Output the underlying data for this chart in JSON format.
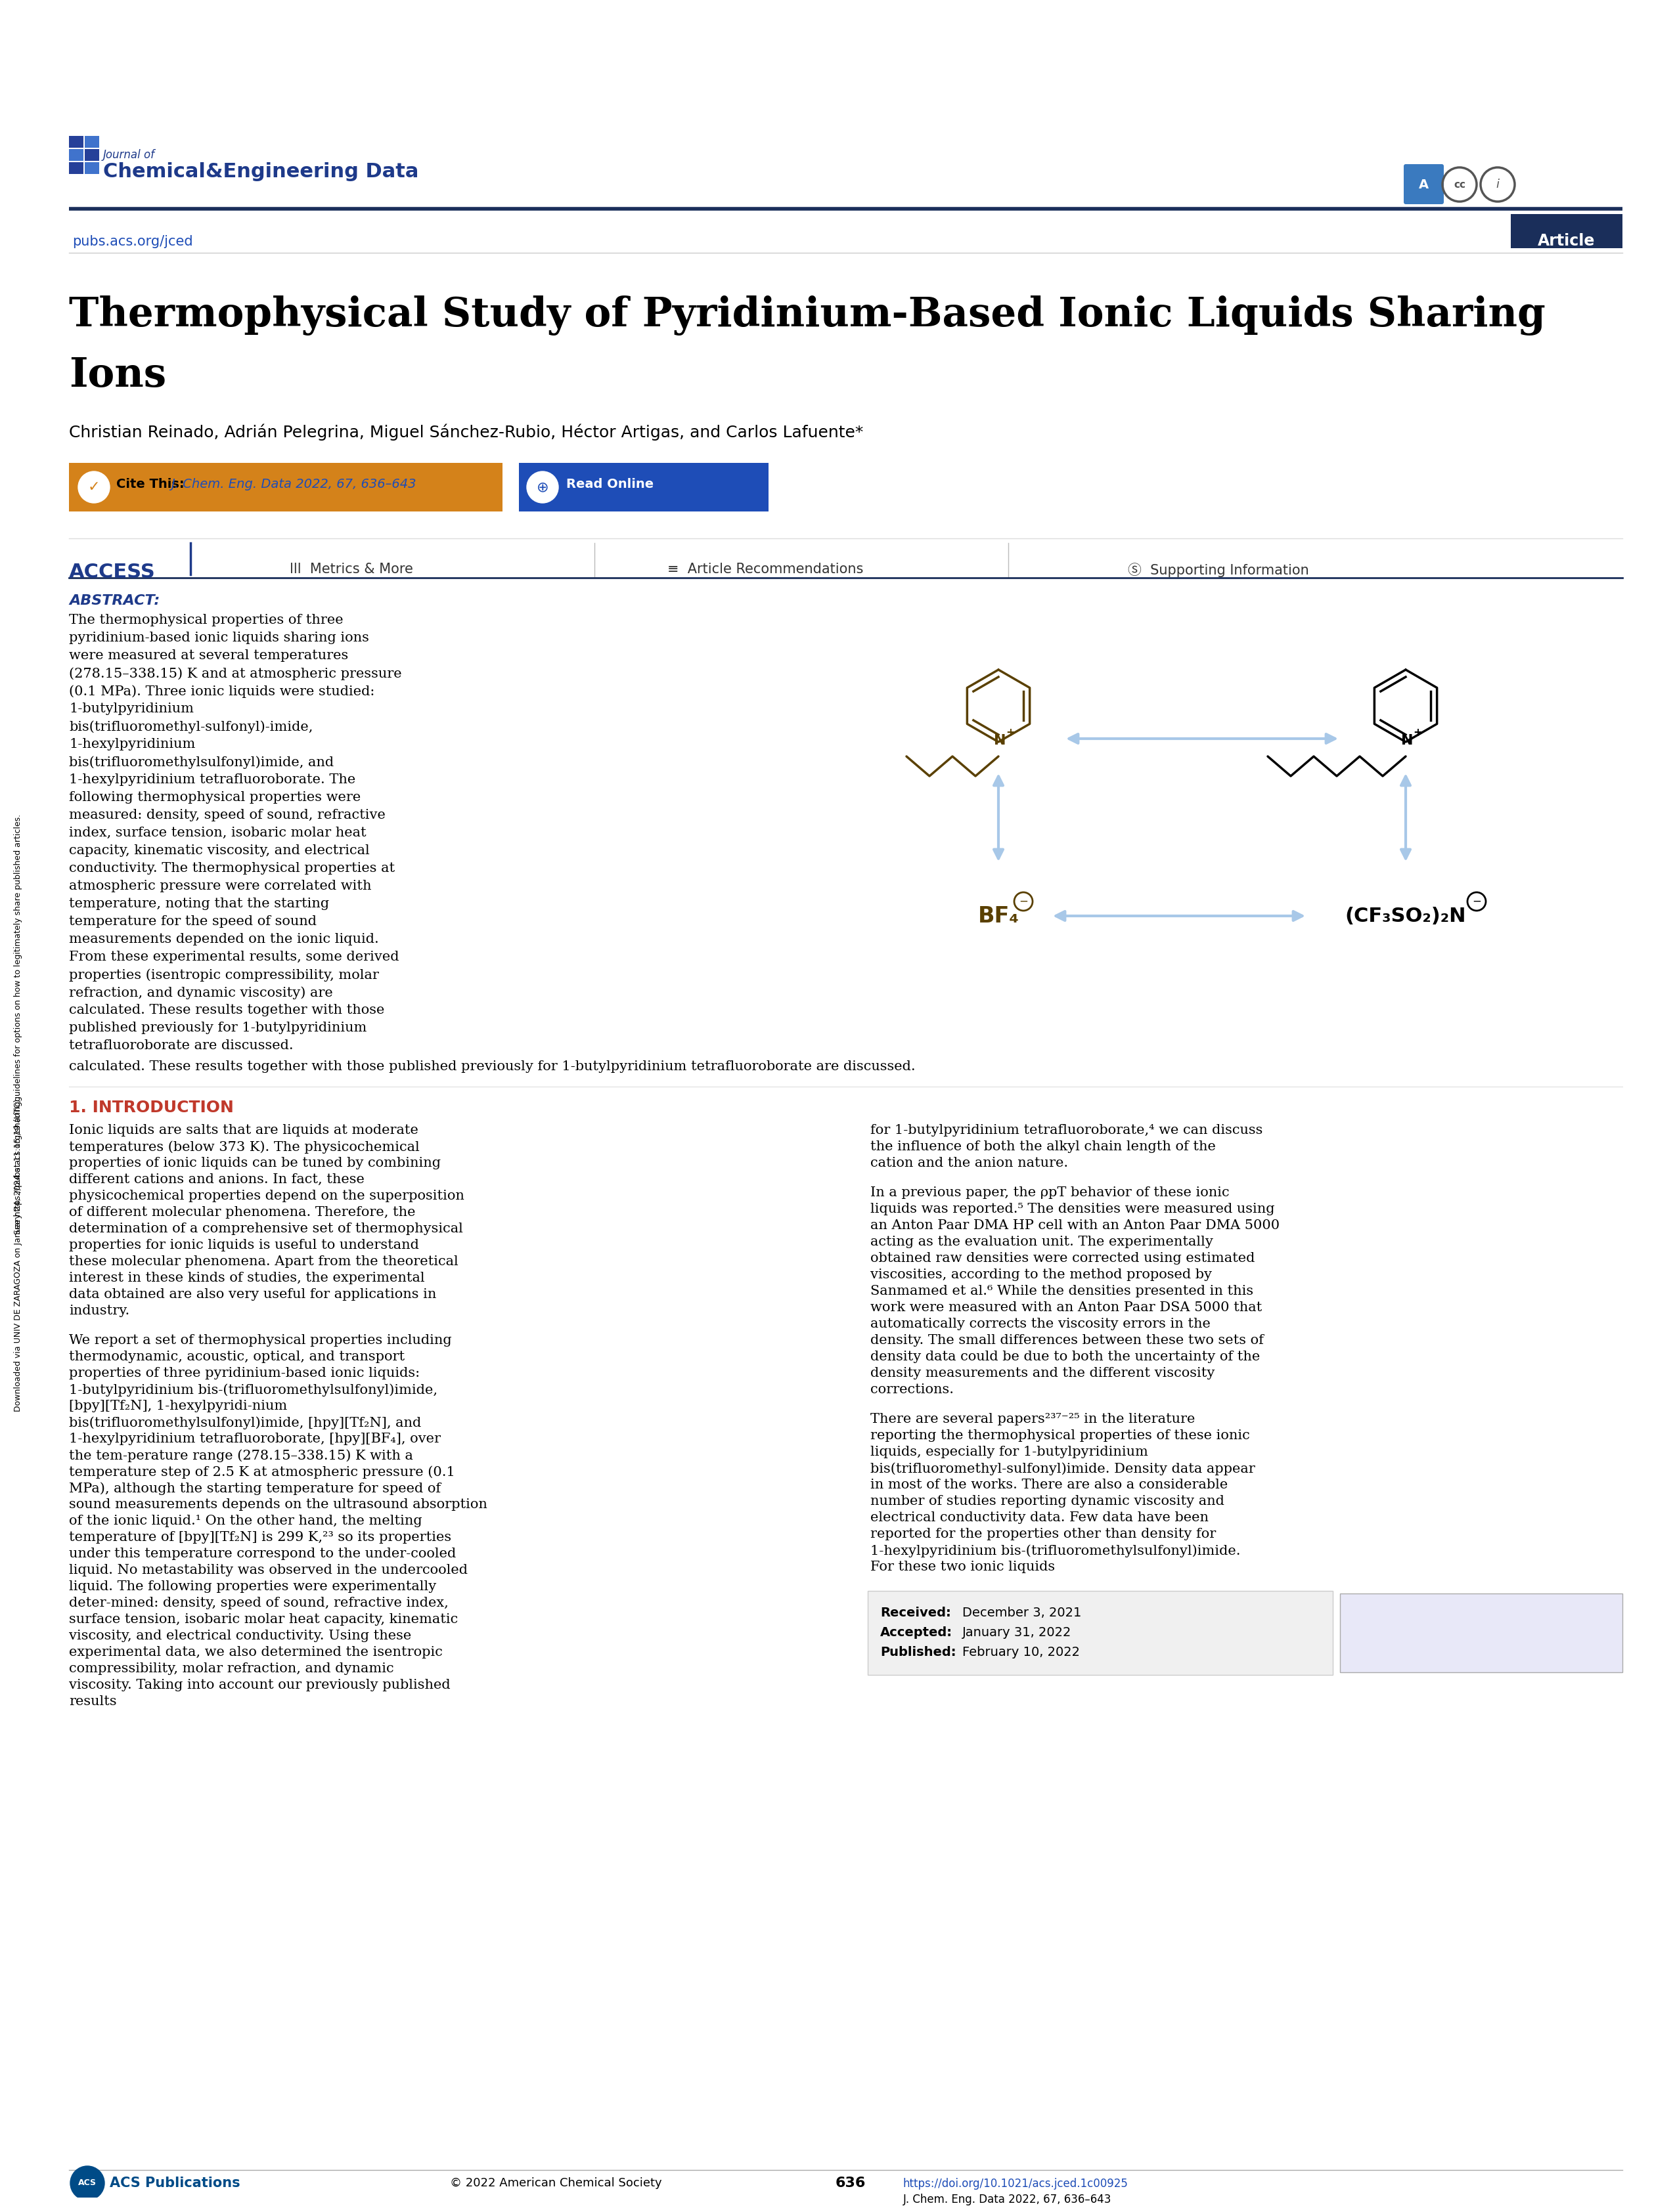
{
  "title_line1": "Thermophysical Study of Pyridinium-Based Ionic Liquids Sharing",
  "title_line2": "Ions",
  "authors": "Christian Reinado, Adrián Pelegrina, Miguel Sánchez-Rubio, Héctor Artigas, and Carlos Lafuente*",
  "journal_name_top": "Journal of",
  "journal_name_bottom": "Chemical&Engineering Data",
  "pubs_url": "pubs.acs.org/jced",
  "article_label": "Article",
  "cite_this_label": "Cite This:",
  "cite_this_ref": "J. Chem. Eng. Data 2022, 67, 636–643",
  "read_online": "Read Online",
  "access_label": "ACCESS",
  "metrics_label": "Metrics & More",
  "article_rec_label": "Article Recommendations",
  "supporting_label": "Supporting Information",
  "abstract_title": "ABSTRACT:",
  "abstract_text": "The thermophysical properties of three pyridinium-based ionic liquids sharing ions were measured at several temperatures (278.15–338.15) K and at atmospheric pressure (0.1 MPa). Three ionic liquids were studied: 1-butylpyridinium bis(trifluoromethyl-sulfonyl)-imide, 1-hexylpyridinium bis(trifluoromethylsulfonyl)imide, and 1-hexylpyridinium tetrafluoroborate. The following thermophysical properties were measured: density, speed of sound, refractive index, surface tension, isobaric molar heat capacity, kinematic viscosity, and electrical conductivity. The thermophysical properties at atmospheric pressure were correlated with temperature, noting that the starting temperature for the speed of sound measurements depended on the ionic liquid. From these experimental results, some derived properties (isentropic compressibility, molar refraction, and dynamic viscosity) are calculated. These results together with those published previously for 1-butylpyridinium tetrafluoroborate are discussed.",
  "intro_title": "1. INTRODUCTION",
  "intro_text1": "Ionic liquids are salts that are liquids at moderate temperatures (below 373 K). The physicochemical properties of ionic liquids can be tuned by combining different cations and anions. In fact, these physicochemical properties depend on the superposition of different molecular phenomena. Therefore, the determination of a comprehensive set of thermophysical properties for ionic liquids is useful to understand these molecular phenomena. Apart from the theoretical interest in these kinds of studies, the experimental data obtained are also very useful for applications in industry.",
  "intro_text2": "We report a set of thermophysical properties including thermodynamic, acoustic, optical, and transport properties of three pyridinium-based ionic liquids: 1-butylpyridinium bis-(trifluoromethylsulfonyl)imide, [bpy][Tf₂N], 1-hexylpyridi-nium bis(trifluoromethylsulfonyl)imide, [hpy][Tf₂N], and 1-hexylpyridinium tetrafluoroborate, [hpy][BF₄], over the tem-perature range (278.15–338.15) K with a temperature step of 2.5 K at atmospheric pressure (0.1 MPa), although the starting temperature for speed of sound measurements depends on the ultrasound absorption of the ionic liquid.¹ On the other hand, the melting temperature of [bpy][Tf₂N] is 299 K,²³ so its properties under this temperature correspond to the under-cooled liquid. No metastability was observed in the undercooled liquid. The following properties were experimentally deter-mined: density, speed of sound, refractive index, surface tension, isobaric molar heat capacity, kinematic viscosity, and electrical conductivity. Using these experimental data, we also determined the isentropic compressibility, molar refraction, and dynamic viscosity. Taking into account our previously published results",
  "right_col_text1": "for 1-butylpyridinium tetrafluoroborate,⁴ we can discuss the influence of both the alkyl chain length of the cation and the anion nature.",
  "right_col_text2": "In a previous paper, the ρpT behavior of these ionic liquids was reported.⁵ The densities were measured using an Anton Paar DMA HP cell with an Anton Paar DMA 5000 acting as the evaluation unit. The experimentally obtained raw densities were corrected using estimated viscosities, according to the method proposed by Sanmamed et al.⁶ While the densities presented in this work were measured with an Anton Paar DSA 5000 that automatically corrects the viscosity errors in the density. The small differences between these two sets of density data could be due to both the uncertainty of the density measurements and the different viscosity corrections.",
  "right_col_text3": "There are several papers²³⁷⁻²⁵ in the literature reporting the thermophysical properties of these ionic liquids, especially for 1-butylpyridinium bis(trifluoromethyl-sulfonyl)imide. Density data appear in most of the works. There are also a considerable number of studies reporting dynamic viscosity and electrical conductivity data. Few data have been reported for the properties other than density for 1-hexylpyridinium bis-(trifluoromethylsulfonyl)imide. For these two ionic liquids",
  "received": "Received:",
  "received_date": "December 3, 2021",
  "accepted": "Accepted:",
  "accepted_date": "January 31, 2022",
  "published": "Published:",
  "published_date": "February 10, 2022",
  "doi_text": "https://doi.org/10.1021/acs.jced.1c00925",
  "journal_ref": "J. Chem. Eng. Data 2022, 67, 636–643",
  "page_num": "636",
  "copyright": "© 2022 American Chemical Society",
  "acs_pubs": "ACS Publications",
  "side_text1": "Downloaded via UNIV DE ZARAGOZA on January 24, 2024 at 11:15:19 (UTC).",
  "side_text2": "See https://pubs.acs.org/sharingguidelines for options on how to legitimately share published articles.",
  "header_line_color": "#1a2e5a",
  "article_badge_color": "#1a2e5a",
  "journal_blue": "#1e3a8a",
  "cite_orange": "#d4821a",
  "read_blue": "#1e4db7",
  "access_blue": "#1e3a8a",
  "intro_title_color": "#c0392b",
  "link_blue": "#1e4db7",
  "chem_brown": "#5a4000",
  "arrow_blue": "#a8c8e8",
  "text_color": "#000000"
}
